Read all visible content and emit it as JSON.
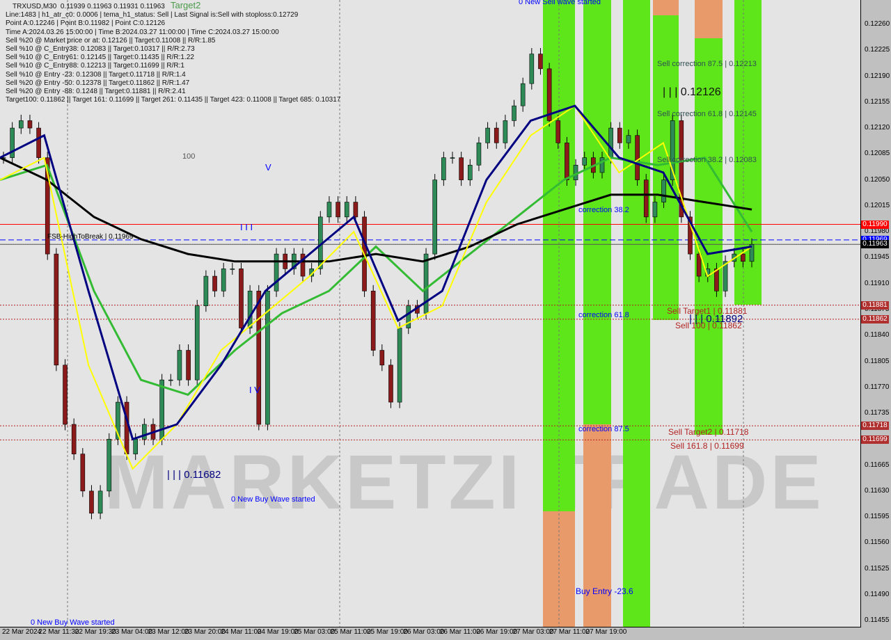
{
  "header": {
    "symbol_line": "TRXUSD,M30  0.11939 0.11963 0.11931 0.11963",
    "info_lines": [
      "Line:1483 | h1_atr_c0: 0.0006 | tema_h1_status: Sell | Last Signal is:Sell with stoploss:0.12729",
      "Point A:0.12246 | Point B:0.11982 | Point C:0.12126",
      "Time A:2024.03.26 15:00:00 | Time B:2024.03.27 11:00:00 | Time C:2024.03.27 15:00:00",
      "Sell %20 @ Market price or at: 0.12126 || Target:0.11008 || R/R:1.85",
      "Sell %10 @ C_Entry38: 0.12083 || Target:0.10317 || R/R:2.73",
      "Sell %10 @ C_Entry61: 0.12145 || Target:0.11435 || R/R:1.22",
      "Sell %10 @ C_Entry88: 0.12213 || Target:0.11699 || R/R:1",
      "Sell %10 @ Entry -23: 0.12308 || Target:0.11718 || R/R:1.4",
      "Sell %20 @ Entry -50: 0.12378 || Target:0.11862 || R/R:1.47",
      "Sell %20 @ Entry -88: 0.1248 || Target:0.11881 || R/R:2.41",
      "Target100: 0.11862 || Target 161: 0.11699 || Target 261: 0.11435 || Target 423: 0.11008 || Target 685: 0.10317"
    ]
  },
  "watermark": "MARKETZI TRADE",
  "colors": {
    "bull": "#2e8b57",
    "bear": "#8b1a1a",
    "green_zone": "#5ee61a",
    "orange_zone": "#e89a6a",
    "ma_slow": "#000000",
    "ma_blue": "#000080",
    "ma_yellow": "#ffff00",
    "ma_green": "#33bb33"
  },
  "chart_data": {
    "type": "candlestick",
    "symbol": "TRXUSD",
    "timeframe": "M30",
    "ylim": [
      0.1144,
      0.1229
    ],
    "y_ticks": [
      "0.12260",
      "0.12225",
      "0.12190",
      "0.12155",
      "0.12120",
      "0.12085",
      "0.12050",
      "0.12015",
      "0.11980",
      "0.11945",
      "0.11910",
      "0.11875",
      "0.11840",
      "0.11805",
      "0.11770",
      "0.11735",
      "0.11665",
      "0.11630",
      "0.11595",
      "0.11560",
      "0.11525",
      "0.11490",
      "0.11455"
    ],
    "x_ticks": [
      "22 Mar 2024",
      "22 Mar 11:30",
      "22 Mar 19:30",
      "23 Mar 04:00",
      "23 Mar 12:00",
      "23 Mar 20:00",
      "24 Mar 11:00",
      "24 Mar 19:00",
      "25 Mar 03:00",
      "25 Mar 11:00",
      "25 Mar 19:00",
      "26 Mar 03:00",
      "26 Mar 11:00",
      "26 Mar 19:00",
      "27 Mar 03:00",
      "27 Mar 11:00",
      "27 Mar 19:00"
    ],
    "closes": [
      0.1208,
      0.1212,
      0.1213,
      0.1212,
      0.1208,
      0.1195,
      0.118,
      0.1172,
      0.1168,
      0.1163,
      0.116,
      0.1163,
      0.117,
      0.1175,
      0.1168,
      0.117,
      0.1172,
      0.117,
      0.1178,
      0.1178,
      0.1182,
      0.1178,
      0.1188,
      0.1192,
      0.119,
      0.1193,
      0.1193,
      0.1185,
      0.119,
      0.1172,
      0.119,
      0.1195,
      0.1193,
      0.1195,
      0.1192,
      0.1193,
      0.12,
      0.1202,
      0.12,
      0.1202,
      0.12,
      0.119,
      0.1182,
      0.118,
      0.1175,
      0.1185,
      0.1188,
      0.1187,
      0.1195,
      0.1205,
      0.1208,
      0.1208,
      0.1205,
      0.1207,
      0.121,
      0.1212,
      0.121,
      0.1213,
      0.1215,
      0.1218,
      0.1222,
      0.122,
      0.1213,
      0.121,
      0.1205,
      0.1207,
      0.1208,
      0.1206,
      0.1208,
      0.1212,
      0.121,
      0.1211,
      0.1205,
      0.12,
      0.1202,
      0.1205,
      0.1213,
      0.12,
      0.1195,
      0.1192,
      0.1193,
      0.119,
      0.1194,
      0.1195,
      0.1194,
      0.11963
    ],
    "ma_slow": [
      0.1208,
      0.1205,
      0.12,
      0.1197,
      0.1195,
      0.1194,
      0.1194,
      0.1194,
      0.1195,
      0.1194,
      0.1196,
      0.1199,
      0.1201,
      0.1203,
      0.1203,
      0.1202,
      0.1201
    ],
    "ma_blue": [
      0.1208,
      0.1211,
      0.119,
      0.117,
      0.1172,
      0.118,
      0.119,
      0.1195,
      0.12,
      0.1186,
      0.119,
      0.1205,
      0.1213,
      0.1215,
      0.1208,
      0.1206,
      0.1195,
      0.1196
    ],
    "ma_yellow": [
      0.1205,
      0.1208,
      0.118,
      0.1166,
      0.1172,
      0.1182,
      0.1187,
      0.1192,
      0.1198,
      0.1185,
      0.1188,
      0.1202,
      0.1211,
      0.1215,
      0.1206,
      0.121,
      0.1192,
      0.1196
    ],
    "ma_green": [
      0.1205,
      0.1207,
      0.119,
      0.1178,
      0.1176,
      0.1182,
      0.1187,
      0.119,
      0.1196,
      0.119,
      0.1195,
      0.12,
      0.1205,
      0.1208,
      0.1207,
      0.1208,
      0.1198
    ],
    "levels": [
      {
        "price": 0.1199,
        "label": "0.11990",
        "color": "#ff0000"
      },
      {
        "price": 0.1198,
        "label": "0.11980",
        "color": ""
      },
      {
        "price": 0.11969,
        "label": "0.11969",
        "color": "#0000ff"
      },
      {
        "price": 0.11963,
        "label": "0.11963",
        "color": "#000000"
      },
      {
        "price": 0.11881,
        "label": "0.11881",
        "color": "#b22222"
      },
      {
        "price": 0.11862,
        "label": "0.11862",
        "color": "#b22222"
      },
      {
        "price": 0.11718,
        "label": "0.11718",
        "color": "#b22222"
      },
      {
        "price": 0.11699,
        "label": "0.11699",
        "color": "#b22222"
      }
    ],
    "annotations": {
      "target2": "Target2",
      "n100": "100",
      "v": "V",
      "iii": "I I I",
      "fsb": "FSB-HighToBreak | 0.11969",
      "c382": "correction 38.2",
      "c618": "correction 61.8",
      "c875": "correction 87.5",
      "buy_entry": "Buy Entry -23.6",
      "sc875": "Sell correction 87.5 | 0.12213",
      "pc": "| | | 0.12126",
      "sc618": "Sell correction 61.8 | 0.12145",
      "sc382": "Sell correction 38.2 | 0.12083",
      "st1": "Sell Target1 | 0.11881",
      "pb": "| | | 0.11892",
      "s100": "Sell 100 | 0.11862",
      "st2": "Sell Target2 | 0.11718",
      "s1618": "Sell 161.8 | 0.11699",
      "pa": "| | | 0.11682",
      "nbw1": "0 New Buy Wave started",
      "nbw2": "0 New Buy Wave started",
      "nsw": "0 New Sell wave started",
      "iv": "I V"
    }
  }
}
